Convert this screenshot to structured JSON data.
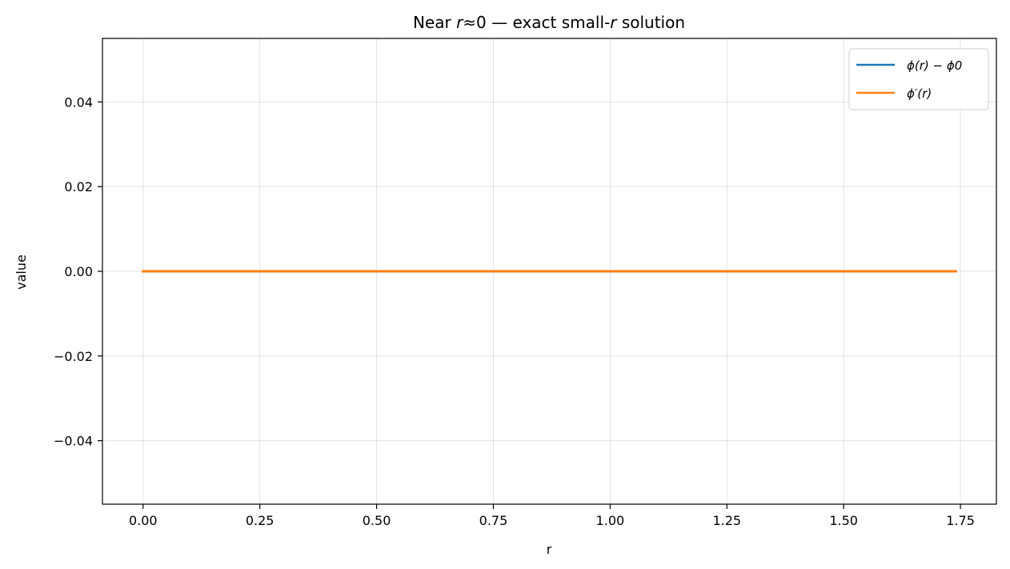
{
  "chart_data": {
    "type": "line",
    "title": "Near r≈0 — exact small-r solution",
    "title_parts": {
      "pre": "Near ",
      "var1": "r",
      "mid": "≈0 — exact small-",
      "var2": "r",
      "post": " solution"
    },
    "xlabel": "r",
    "ylabel": "value",
    "xlim": [
      -0.087,
      1.827
    ],
    "ylim": [
      -0.055,
      0.055
    ],
    "xticks": [
      0.0,
      0.25,
      0.5,
      0.75,
      1.0,
      1.25,
      1.5,
      1.75
    ],
    "xtick_labels": [
      "0.00",
      "0.25",
      "0.50",
      "0.75",
      "1.00",
      "1.25",
      "1.50",
      "1.75"
    ],
    "yticks": [
      -0.04,
      -0.02,
      0.0,
      0.02,
      0.04
    ],
    "ytick_labels": [
      "−0.04",
      "−0.02",
      "0.00",
      "0.02",
      "0.04"
    ],
    "grid": true,
    "legend_position": "top-right",
    "x": [
      0.0,
      1.74
    ],
    "series": [
      {
        "name": "ϕ(r) − ϕ0",
        "color": "#1f77b4",
        "values": [
          0.0,
          0.0
        ]
      },
      {
        "name": "ϕ′(r)",
        "color": "#ff7f0e",
        "values": [
          0.0,
          0.0
        ]
      }
    ]
  }
}
